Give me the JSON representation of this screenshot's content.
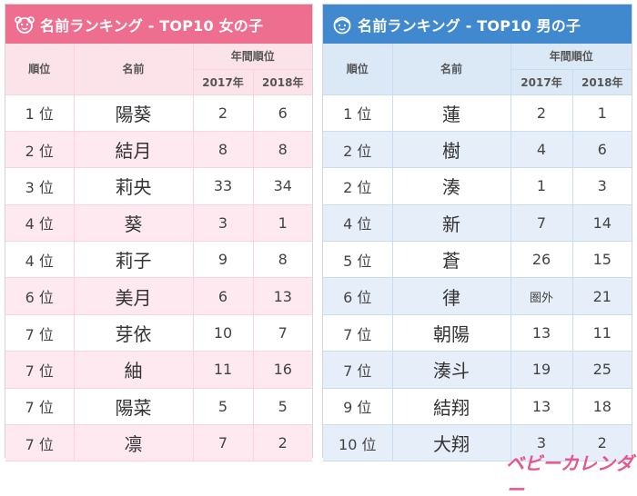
{
  "girls": {
    "title": "名前ランキング - TOP10 女の子",
    "header": {
      "rank": "順位",
      "name": "名前",
      "yearly": "年間順位",
      "y2017": "2017年",
      "y2018": "2018年"
    },
    "rows": [
      {
        "rank": "1 位",
        "name": "陽葵",
        "r2017": "2",
        "r2018": "6"
      },
      {
        "rank": "2 位",
        "name": "結月",
        "r2017": "8",
        "r2018": "8"
      },
      {
        "rank": "3 位",
        "name": "莉央",
        "r2017": "33",
        "r2018": "34"
      },
      {
        "rank": "4 位",
        "name": "葵",
        "r2017": "3",
        "r2018": "1"
      },
      {
        "rank": "4 位",
        "name": "莉子",
        "r2017": "9",
        "r2018": "8"
      },
      {
        "rank": "6 位",
        "name": "美月",
        "r2017": "6",
        "r2018": "13"
      },
      {
        "rank": "7 位",
        "name": "芽依",
        "r2017": "10",
        "r2018": "7"
      },
      {
        "rank": "7 位",
        "name": "紬",
        "r2017": "11",
        "r2018": "16"
      },
      {
        "rank": "7 位",
        "name": "陽菜",
        "r2017": "5",
        "r2018": "5"
      },
      {
        "rank": "7 位",
        "name": "凛",
        "r2017": "7",
        "r2018": "2"
      }
    ],
    "accent_color": "#ee6e8f"
  },
  "boys": {
    "title": "名前ランキング - TOP10 男の子",
    "header": {
      "rank": "順位",
      "name": "名前",
      "yearly": "年間順位",
      "y2017": "2017年",
      "y2018": "2018年"
    },
    "rows": [
      {
        "rank": "1 位",
        "name": "蓮",
        "r2017": "2",
        "r2018": "1"
      },
      {
        "rank": "2 位",
        "name": "樹",
        "r2017": "4",
        "r2018": "6"
      },
      {
        "rank": "2 位",
        "name": "湊",
        "r2017": "1",
        "r2018": "3"
      },
      {
        "rank": "4 位",
        "name": "新",
        "r2017": "7",
        "r2018": "14"
      },
      {
        "rank": "5 位",
        "name": "蒼",
        "r2017": "26",
        "r2018": "15"
      },
      {
        "rank": "6 位",
        "name": "律",
        "r2017": "圏外",
        "r2018": "21"
      },
      {
        "rank": "7 位",
        "name": "朝陽",
        "r2017": "13",
        "r2018": "11"
      },
      {
        "rank": "7 位",
        "name": "湊斗",
        "r2017": "19",
        "r2018": "25"
      },
      {
        "rank": "9 位",
        "name": "結翔",
        "r2017": "13",
        "r2018": "18"
      },
      {
        "rank": "10 位",
        "name": "大翔",
        "r2017": "3",
        "r2018": "2"
      }
    ],
    "accent_color": "#4189cf"
  },
  "brand": {
    "logo_text": "ベビーカレンダー"
  }
}
